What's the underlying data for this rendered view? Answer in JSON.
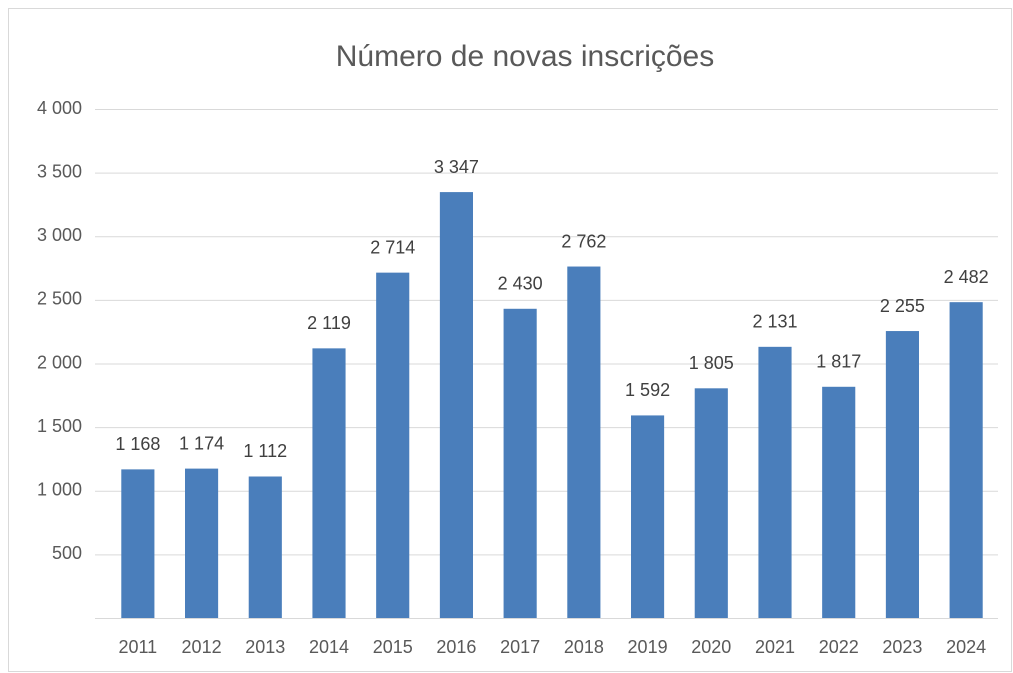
{
  "chart_data": {
    "type": "bar",
    "title": "Número de novas inscrições",
    "categories": [
      "2011",
      "2012",
      "2013",
      "2014",
      "2015",
      "2016",
      "2017",
      "2018",
      "2019",
      "2020",
      "2021",
      "2022",
      "2023",
      "2024"
    ],
    "values": [
      1168,
      1174,
      1112,
      2119,
      2714,
      3347,
      2430,
      2762,
      1592,
      1805,
      2131,
      1817,
      2255,
      2482
    ],
    "value_labels": [
      "1 168",
      "1 174",
      "1 112",
      "2 119",
      "2 714",
      "3 347",
      "2 430",
      "2 762",
      "1 592",
      "1 805",
      "2 131",
      "1 817",
      "2 255",
      "2 482"
    ],
    "color": "#4a7ebb",
    "ylim": [
      0,
      4000
    ],
    "yticks": [
      500,
      {
        "value": 1000,
        "label": "1 000"
      },
      {
        "value": 1500,
        "label": "1 500"
      },
      {
        "value": 2000,
        "label": "2 000"
      },
      {
        "value": 2500,
        "label": "2 500"
      },
      {
        "value": 3000,
        "label": "3 000"
      },
      {
        "value": 3500,
        "label": "3 500"
      },
      {
        "value": 4000,
        "label": "4 000"
      }
    ],
    "grid": true
  }
}
